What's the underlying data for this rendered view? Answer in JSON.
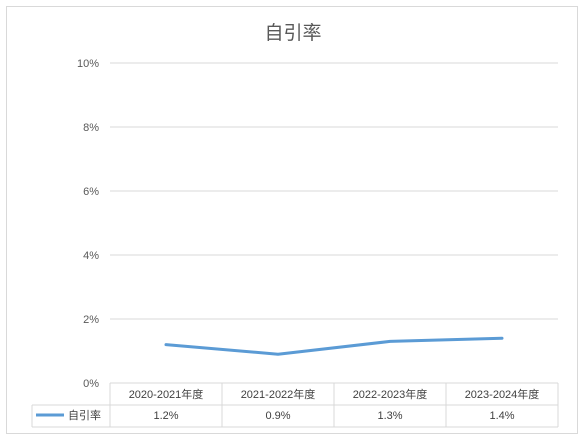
{
  "chart_data": {
    "type": "line",
    "title": "自引率",
    "categories": [
      "2020-2021年度",
      "2021-2022年度",
      "2022-2023年度",
      "2023-2024年度"
    ],
    "series": [
      {
        "name": "自引率",
        "values": [
          1.2,
          0.9,
          1.3,
          1.4
        ],
        "labels": [
          "1.2%",
          "0.9%",
          "1.3%",
          "1.4%"
        ],
        "color": "#5b9bd5"
      }
    ],
    "yticks": [
      "0%",
      "2%",
      "4%",
      "6%",
      "8%",
      "10%"
    ],
    "ylim": [
      0,
      10
    ],
    "grid": true,
    "legend": "data-table",
    "colors": {
      "grid": "#d9d9d9",
      "text": "#595959",
      "table_border": "#d9d9d9"
    }
  }
}
